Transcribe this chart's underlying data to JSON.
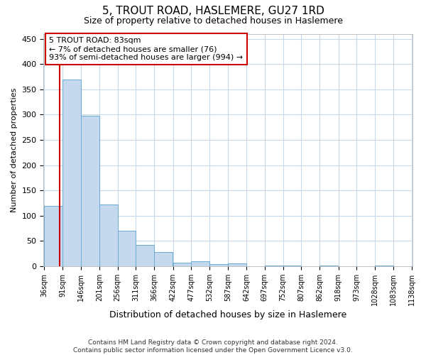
{
  "title": "5, TROUT ROAD, HASLEMERE, GU27 1RD",
  "subtitle": "Size of property relative to detached houses in Haslemere",
  "xlabel": "Distribution of detached houses by size in Haslemere",
  "ylabel": "Number of detached properties",
  "bin_edges": [
    36,
    91,
    146,
    201,
    256,
    311,
    366,
    422,
    477,
    532,
    587,
    642,
    697,
    752,
    807,
    862,
    918,
    973,
    1028,
    1083,
    1138
  ],
  "bar_heights": [
    120,
    370,
    298,
    122,
    70,
    42,
    28,
    7,
    10,
    4,
    6,
    0,
    2,
    1,
    0,
    1,
    0,
    0,
    1,
    0
  ],
  "bar_color": "#c5d9ee",
  "bar_edge_color": "#6aaad4",
  "property_size": 83,
  "property_line_color": "#cc0000",
  "annotation_text": "5 TROUT ROAD: 83sqm\n← 7% of detached houses are smaller (76)\n93% of semi-detached houses are larger (994) →",
  "annotation_box_color": "#cc0000",
  "ylim": [
    0,
    460
  ],
  "yticks": [
    0,
    50,
    100,
    150,
    200,
    250,
    300,
    350,
    400,
    450
  ],
  "footer_text": "Contains HM Land Registry data © Crown copyright and database right 2024.\nContains public sector information licensed under the Open Government Licence v3.0.",
  "bg_color": "#ffffff",
  "grid_color": "#c8d8e8",
  "title_fontsize": 11,
  "subtitle_fontsize": 9,
  "ylabel_fontsize": 8,
  "xlabel_fontsize": 9,
  "annotation_fontsize": 8,
  "tick_fontsize": 7
}
